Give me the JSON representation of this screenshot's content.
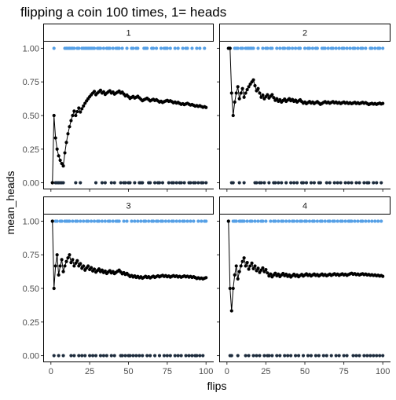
{
  "chart_data": {
    "type": "scatter",
    "title": "flipping a coin 100 times, 1= heads",
    "xlabel": "flips",
    "ylabel": "mean_heads",
    "xlim": [
      0,
      100
    ],
    "ylim": [
      0,
      1
    ],
    "x_ticks": [
      0,
      25,
      50,
      75,
      100
    ],
    "x_tick_labels": [
      "0",
      "25",
      "50",
      "75",
      "100"
    ],
    "y_ticks": [
      0,
      0.25,
      0.5,
      0.75,
      1
    ],
    "y_tick_labels": [
      "0.00",
      "0.25",
      "0.50",
      "0.75",
      "1.00"
    ],
    "grid": false,
    "colors": {
      "heads": "#56a0e6",
      "tails": "#1c2b3c",
      "running_mean": "#000000",
      "panel_border": "#000000"
    },
    "panels": [
      {
        "label": "1",
        "flips": [
          0,
          1,
          0,
          0,
          0,
          0,
          0,
          0,
          1,
          1,
          1,
          1,
          1,
          1,
          1,
          0,
          1,
          1,
          0,
          1,
          1,
          1,
          1,
          1,
          1,
          1,
          1,
          1,
          0,
          1,
          1,
          1,
          0,
          1,
          0,
          1,
          1,
          1,
          0,
          1,
          0,
          1,
          1,
          1,
          0,
          1,
          0,
          0,
          1,
          0,
          0,
          1,
          1,
          0,
          1,
          1,
          0,
          0,
          0,
          1,
          1,
          1,
          0,
          0,
          1,
          1,
          0,
          1,
          0,
          0,
          1,
          0,
          1,
          1,
          1,
          0,
          1,
          0,
          0,
          1,
          0,
          1,
          0,
          0,
          1,
          0,
          1,
          1,
          0,
          0,
          1,
          0,
          0,
          1,
          0,
          1,
          0,
          0,
          1,
          0
        ],
        "running_mean": [
          0,
          0.5,
          0.333,
          0.25,
          0.2,
          0.167,
          0.143,
          0.125,
          0.222,
          0.3,
          0.364,
          0.417,
          0.462,
          0.5,
          0.533,
          0.5,
          0.529,
          0.556,
          0.526,
          0.55,
          0.571,
          0.591,
          0.609,
          0.625,
          0.64,
          0.654,
          0.667,
          0.679,
          0.655,
          0.667,
          0.677,
          0.688,
          0.667,
          0.676,
          0.657,
          0.667,
          0.676,
          0.684,
          0.667,
          0.675,
          0.659,
          0.667,
          0.674,
          0.682,
          0.667,
          0.674,
          0.66,
          0.646,
          0.653,
          0.64,
          0.627,
          0.635,
          0.642,
          0.63,
          0.636,
          0.643,
          0.632,
          0.621,
          0.61,
          0.617,
          0.623,
          0.629,
          0.619,
          0.609,
          0.615,
          0.621,
          0.612,
          0.618,
          0.609,
          0.6,
          0.606,
          0.597,
          0.603,
          0.608,
          0.613,
          0.605,
          0.61,
          0.603,
          0.595,
          0.6,
          0.593,
          0.598,
          0.59,
          0.583,
          0.588,
          0.581,
          0.586,
          0.591,
          0.584,
          0.578,
          0.582,
          0.576,
          0.57,
          0.574,
          0.568,
          0.573,
          0.567,
          0.561,
          0.566,
          0.56
        ]
      },
      {
        "label": "2",
        "flips": [
          1,
          1,
          0,
          0,
          1,
          1,
          1,
          0,
          1,
          1,
          0,
          1,
          1,
          1,
          1,
          1,
          1,
          0,
          0,
          1,
          0,
          0,
          1,
          0,
          1,
          1,
          0,
          1,
          1,
          0,
          0,
          1,
          0,
          1,
          0,
          1,
          1,
          0,
          1,
          1,
          0,
          1,
          0,
          1,
          0,
          1,
          1,
          0,
          0,
          1,
          0,
          1,
          1,
          0,
          1,
          0,
          1,
          1,
          0,
          0,
          1,
          1,
          1,
          0,
          1,
          0,
          1,
          1,
          0,
          1,
          0,
          1,
          0,
          1,
          1,
          0,
          1,
          0,
          1,
          0,
          1,
          1,
          0,
          1,
          0,
          1,
          1,
          0,
          1,
          0,
          0,
          1,
          1,
          0,
          1,
          0,
          1,
          1,
          0,
          1
        ],
        "running_mean": [
          1,
          1,
          0.667,
          0.5,
          0.6,
          0.667,
          0.714,
          0.625,
          0.667,
          0.7,
          0.636,
          0.667,
          0.692,
          0.714,
          0.733,
          0.75,
          0.765,
          0.722,
          0.684,
          0.7,
          0.667,
          0.636,
          0.652,
          0.625,
          0.64,
          0.654,
          0.63,
          0.643,
          0.655,
          0.633,
          0.613,
          0.625,
          0.606,
          0.618,
          0.6,
          0.611,
          0.622,
          0.605,
          0.615,
          0.625,
          0.61,
          0.619,
          0.605,
          0.614,
          0.6,
          0.609,
          0.617,
          0.604,
          0.592,
          0.6,
          0.588,
          0.596,
          0.604,
          0.593,
          0.6,
          0.589,
          0.596,
          0.603,
          0.593,
          0.583,
          0.59,
          0.597,
          0.603,
          0.594,
          0.6,
          0.591,
          0.597,
          0.603,
          0.594,
          0.6,
          0.592,
          0.597,
          0.589,
          0.595,
          0.6,
          0.592,
          0.597,
          0.59,
          0.595,
          0.588,
          0.593,
          0.598,
          0.59,
          0.595,
          0.588,
          0.593,
          0.598,
          0.591,
          0.596,
          0.589,
          0.582,
          0.587,
          0.591,
          0.585,
          0.589,
          0.583,
          0.588,
          0.592,
          0.586,
          0.59
        ]
      },
      {
        "label": "3",
        "flips": [
          1,
          0,
          1,
          1,
          0,
          1,
          1,
          0,
          1,
          1,
          1,
          1,
          0,
          1,
          0,
          1,
          1,
          0,
          1,
          0,
          1,
          0,
          1,
          1,
          0,
          1,
          0,
          1,
          0,
          1,
          1,
          0,
          1,
          0,
          1,
          0,
          1,
          1,
          0,
          1,
          0,
          1,
          1,
          1,
          0,
          0,
          1,
          0,
          1,
          0,
          0,
          1,
          0,
          1,
          0,
          1,
          0,
          1,
          0,
          1,
          1,
          0,
          1,
          0,
          1,
          1,
          0,
          1,
          1,
          0,
          1,
          1,
          0,
          1,
          0,
          1,
          0,
          1,
          1,
          0,
          1,
          0,
          1,
          0,
          1,
          1,
          0,
          1,
          0,
          1,
          0,
          1,
          0,
          0,
          1,
          0,
          1,
          0,
          1,
          1
        ],
        "running_mean": [
          1,
          0.5,
          0.667,
          0.75,
          0.6,
          0.667,
          0.714,
          0.625,
          0.667,
          0.7,
          0.727,
          0.75,
          0.692,
          0.714,
          0.667,
          0.688,
          0.706,
          0.667,
          0.684,
          0.65,
          0.667,
          0.636,
          0.652,
          0.667,
          0.64,
          0.654,
          0.63,
          0.643,
          0.621,
          0.633,
          0.645,
          0.625,
          0.636,
          0.618,
          0.629,
          0.611,
          0.622,
          0.632,
          0.615,
          0.625,
          0.61,
          0.619,
          0.628,
          0.636,
          0.622,
          0.609,
          0.617,
          0.604,
          0.612,
          0.6,
          0.588,
          0.596,
          0.585,
          0.593,
          0.582,
          0.589,
          0.579,
          0.586,
          0.576,
          0.583,
          0.59,
          0.581,
          0.587,
          0.578,
          0.585,
          0.591,
          0.582,
          0.588,
          0.594,
          0.586,
          0.592,
          0.597,
          0.589,
          0.595,
          0.587,
          0.592,
          0.584,
          0.59,
          0.595,
          0.588,
          0.593,
          0.585,
          0.59,
          0.583,
          0.588,
          0.593,
          0.586,
          0.591,
          0.584,
          0.589,
          0.582,
          0.587,
          0.581,
          0.574,
          0.579,
          0.573,
          0.577,
          0.571,
          0.576,
          0.58
        ]
      },
      {
        "label": "4",
        "flips": [
          1,
          0,
          0,
          1,
          1,
          1,
          0,
          1,
          1,
          1,
          1,
          0,
          1,
          0,
          1,
          1,
          0,
          1,
          0,
          1,
          0,
          1,
          1,
          0,
          1,
          0,
          0,
          1,
          0,
          1,
          1,
          0,
          1,
          0,
          1,
          1,
          0,
          1,
          0,
          1,
          0,
          1,
          1,
          0,
          1,
          0,
          1,
          1,
          0,
          1,
          1,
          0,
          1,
          0,
          1,
          1,
          0,
          1,
          0,
          1,
          1,
          0,
          1,
          0,
          1,
          1,
          0,
          1,
          1,
          0,
          1,
          0,
          1,
          1,
          0,
          1,
          0,
          1,
          1,
          1,
          0,
          1,
          0,
          1,
          0,
          1,
          1,
          0,
          1,
          0,
          1,
          0,
          1,
          0,
          1,
          0,
          1,
          0,
          1,
          0
        ],
        "running_mean": [
          1,
          0.5,
          0.333,
          0.5,
          0.6,
          0.667,
          0.571,
          0.625,
          0.667,
          0.7,
          0.727,
          0.667,
          0.692,
          0.643,
          0.667,
          0.688,
          0.647,
          0.667,
          0.632,
          0.65,
          0.619,
          0.636,
          0.652,
          0.625,
          0.64,
          0.615,
          0.593,
          0.607,
          0.586,
          0.6,
          0.613,
          0.594,
          0.606,
          0.588,
          0.6,
          0.611,
          0.595,
          0.605,
          0.59,
          0.6,
          0.585,
          0.595,
          0.605,
          0.591,
          0.6,
          0.587,
          0.596,
          0.604,
          0.592,
          0.6,
          0.608,
          0.596,
          0.604,
          0.593,
          0.6,
          0.607,
          0.596,
          0.603,
          0.593,
          0.6,
          0.607,
          0.597,
          0.603,
          0.594,
          0.6,
          0.606,
          0.597,
          0.603,
          0.609,
          0.6,
          0.606,
          0.597,
          0.603,
          0.608,
          0.6,
          0.605,
          0.597,
          0.603,
          0.608,
          0.613,
          0.605,
          0.61,
          0.602,
          0.607,
          0.6,
          0.605,
          0.609,
          0.602,
          0.607,
          0.6,
          0.604,
          0.598,
          0.602,
          0.596,
          0.6,
          0.594,
          0.598,
          0.592,
          0.596,
          0.59
        ]
      }
    ]
  }
}
